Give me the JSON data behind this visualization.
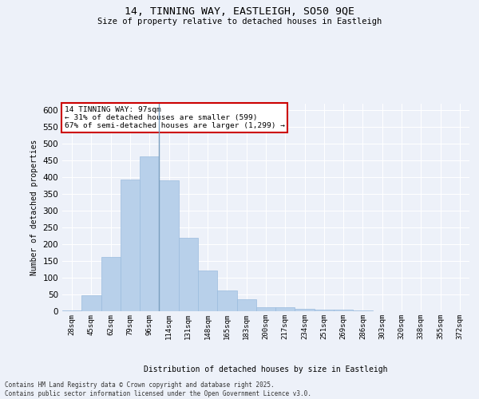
{
  "title_line1": "14, TINNING WAY, EASTLEIGH, SO50 9QE",
  "title_line2": "Size of property relative to detached houses in Eastleigh",
  "xlabel": "Distribution of detached houses by size in Eastleigh",
  "ylabel": "Number of detached properties",
  "categories": [
    "28sqm",
    "45sqm",
    "62sqm",
    "79sqm",
    "96sqm",
    "114sqm",
    "131sqm",
    "148sqm",
    "165sqm",
    "183sqm",
    "200sqm",
    "217sqm",
    "234sqm",
    "251sqm",
    "269sqm",
    "286sqm",
    "303sqm",
    "320sqm",
    "338sqm",
    "355sqm",
    "372sqm"
  ],
  "values": [
    2,
    47,
    162,
    393,
    462,
    390,
    220,
    121,
    63,
    36,
    13,
    13,
    8,
    4,
    5,
    2,
    0,
    0,
    0,
    0,
    0
  ],
  "bar_color": "#b8d0ea",
  "bar_edge_color": "#9bbcde",
  "vline_color": "#7a9fc0",
  "annotation_text": "14 TINNING WAY: 97sqm\n← 31% of detached houses are smaller (599)\n67% of semi-detached houses are larger (1,299) →",
  "annotation_box_color": "#ffffff",
  "annotation_edge_color": "#cc0000",
  "ylim": [
    0,
    620
  ],
  "yticks": [
    0,
    50,
    100,
    150,
    200,
    250,
    300,
    350,
    400,
    450,
    500,
    550,
    600
  ],
  "bg_color": "#edf1f9",
  "grid_color": "#ffffff",
  "footer_line1": "Contains HM Land Registry data © Crown copyright and database right 2025.",
  "footer_line2": "Contains public sector information licensed under the Open Government Licence v3.0."
}
